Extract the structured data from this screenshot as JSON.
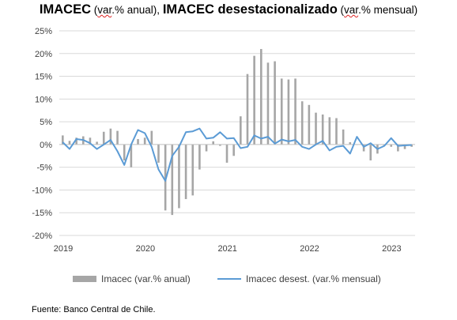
{
  "title": {
    "part1_bold": "IMACEC",
    "part2": " (",
    "part3_sq": "var",
    "part4": ".% anual), ",
    "part5_bold": "IMACEC desestacionalizado",
    "part6": " (",
    "part7_sq": "var",
    "part8": ".% mensual)"
  },
  "legend": {
    "bar_label": "Imacec (var.% anual)",
    "line_label": "Imacec desest. (var.% mensual)"
  },
  "source": "Fuente: Banco Central de Chile.",
  "colors": {
    "bars": "#a6a6a6",
    "line": "#5b9bd5",
    "grid": "#d9d9d9",
    "axis": "#bfbfbf"
  },
  "chart_data": {
    "type": "bar+line",
    "ylim": [
      -20,
      25
    ],
    "yticks": [
      25,
      20,
      15,
      10,
      5,
      0,
      -5,
      -10,
      -15,
      -20
    ],
    "ytick_labels": [
      "25%",
      "20%",
      "15%",
      "10%",
      "5%",
      "0%",
      "-5%",
      "-10%",
      "-15%",
      "-20%"
    ],
    "xtick_labels": [
      "2019",
      "2020",
      "2021",
      "2022",
      "2023"
    ],
    "xtick_month_index": [
      0,
      12,
      24,
      36,
      48
    ],
    "n_months": 52,
    "grid": "horizontal",
    "legend_position": "bottom",
    "series": [
      {
        "name": "Imacec (var.% anual)",
        "type": "bar",
        "values": [
          2.0,
          0.8,
          1.5,
          1.8,
          1.5,
          0.6,
          2.8,
          3.5,
          3.0,
          -3.5,
          -5.0,
          1.2,
          1.5,
          3.0,
          -4.0,
          -14.5,
          -15.5,
          -14.0,
          -12.0,
          -11.2,
          -5.5,
          -1.5,
          0.7,
          -0.3,
          -4.0,
          -2.5,
          6.2,
          15.5,
          19.5,
          21.0,
          18.0,
          18.3,
          14.5,
          14.3,
          14.5,
          9.5,
          8.7,
          7.0,
          6.6,
          6.0,
          5.8,
          3.3,
          0.5,
          0.0,
          -1.5,
          -3.5,
          -2.0,
          -0.3,
          -0.5,
          -1.5,
          -1.0,
          -0.5
        ]
      },
      {
        "name": "Imacec desest. (var.% mensual)",
        "type": "line",
        "values": [
          0.5,
          -1.0,
          1.2,
          1.0,
          0.3,
          -1.0,
          0.0,
          1.0,
          -1.5,
          -4.5,
          0.0,
          3.2,
          2.5,
          -0.5,
          -5.5,
          -8.0,
          -2.5,
          -0.5,
          2.7,
          2.9,
          3.5,
          1.3,
          1.5,
          2.7,
          1.3,
          1.4,
          -0.8,
          -0.5,
          2.0,
          1.3,
          1.7,
          0.2,
          1.1,
          0.7,
          1.0,
          -0.5,
          -1.0,
          0.0,
          0.8,
          -1.3,
          -0.5,
          -0.3,
          -2.0,
          1.7,
          -0.5,
          0.3,
          -1.0,
          -0.3,
          1.4,
          -0.3,
          -0.2,
          -0.1
        ]
      }
    ]
  }
}
